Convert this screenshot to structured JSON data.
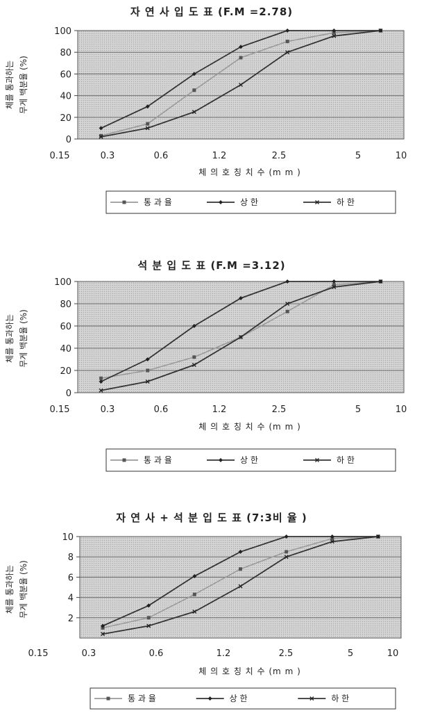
{
  "chart_data": [
    {
      "type": "line",
      "title": "자 연 사  입 도 표 (F.M =2.78)",
      "xlabel": "체 의  호 칭  치 수  (m m )",
      "ylabel": [
        "체를 통과하는",
        "무게 백분율 (%)"
      ],
      "categories": [
        "0.15",
        "0.3",
        "0.6",
        "1.2",
        "2.5",
        "5",
        "10"
      ],
      "yticks": [
        "0",
        "20",
        "40",
        "60",
        "80",
        "100"
      ],
      "ylim": [
        0,
        100
      ],
      "grid": true,
      "series": [
        {
          "name": "통 과 율",
          "color": "#9a9a9a",
          "values": [
            3,
            14,
            45,
            75,
            90,
            98,
            100
          ]
        },
        {
          "name": "상 한",
          "color": "#333333",
          "values": [
            10,
            30,
            60,
            85,
            100,
            100,
            100
          ]
        },
        {
          "name": "하 한",
          "color": "#333333",
          "values": [
            2,
            10,
            25,
            50,
            80,
            95,
            100
          ]
        }
      ]
    },
    {
      "type": "line",
      "title": "석 분  입 도 표 (F.M =3.12)",
      "xlabel": "체 의  호 칭  치 수  (m m )",
      "ylabel": [
        "체를 통과하는",
        "무게 백분율 (%)"
      ],
      "categories": [
        "0.15",
        "0.3",
        "0.6",
        "1.2",
        "2.5",
        "5",
        "10"
      ],
      "yticks": [
        "0",
        "20",
        "40",
        "60",
        "80",
        "100"
      ],
      "ylim": [
        0,
        100
      ],
      "grid": true,
      "series": [
        {
          "name": "통 과 율",
          "color": "#9a9a9a",
          "values": [
            13,
            20,
            32,
            50,
            73,
            97,
            100
          ]
        },
        {
          "name": "상 한",
          "color": "#333333",
          "values": [
            10,
            30,
            60,
            85,
            100,
            100,
            100
          ]
        },
        {
          "name": "하 한",
          "color": "#333333",
          "values": [
            2,
            10,
            25,
            50,
            80,
            95,
            100
          ]
        }
      ]
    },
    {
      "type": "line",
      "title": "자 연 사  + 석 분 입 도 표  (7:3비 율 )",
      "xlabel": "체 의  호 칭  치 수  (m m )",
      "ylabel": [
        "체를 통과하는",
        "무게 백분율 (%)"
      ],
      "categories": [
        "0.15",
        "0.3",
        "0.6",
        "1.2",
        "2.5",
        "5",
        "10"
      ],
      "yticks": [
        "2",
        "4",
        "6",
        "8",
        "10"
      ],
      "ylim": [
        0,
        10
      ],
      "grid": true,
      "series": [
        {
          "name": "통 과 율",
          "color": "#9a9a9a",
          "values": [
            1.0,
            2.0,
            4.3,
            6.8,
            8.5,
            9.8,
            10
          ]
        },
        {
          "name": "상 한",
          "color": "#333333",
          "values": [
            1.2,
            3.2,
            6.1,
            8.5,
            10,
            10,
            10
          ]
        },
        {
          "name": "하 한",
          "color": "#333333",
          "values": [
            0.4,
            1.2,
            2.6,
            5.1,
            8.0,
            9.5,
            10
          ]
        }
      ]
    }
  ]
}
